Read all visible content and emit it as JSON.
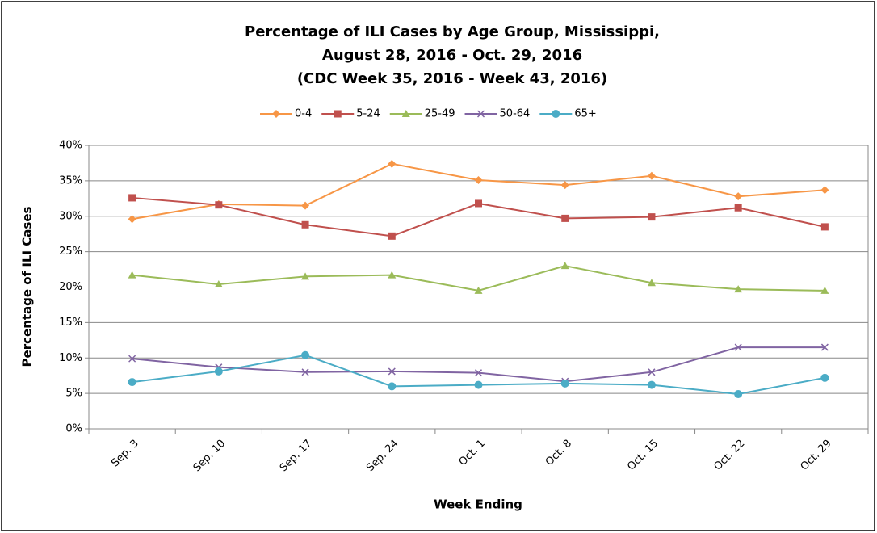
{
  "chart_data": {
    "type": "line",
    "title": [
      "Percentage of ILI Cases by Age Group, Mississippi,",
      "August 28, 2016 - Oct. 29, 2016",
      "(CDC Week 35, 2016 - Week 43, 2016)"
    ],
    "x_label": "Week Ending",
    "y_label": "Percentage of ILI Cases",
    "categories": [
      "Sep. 3",
      "Sep. 10",
      "Sep. 17",
      "Sep. 24",
      "Oct. 1",
      "Oct. 8",
      "Oct. 15",
      "Oct. 22",
      "Oct. 29"
    ],
    "series": [
      {
        "name": "0-4",
        "color": "#f79646",
        "marker": "diamond",
        "values": [
          29.6,
          31.7,
          31.5,
          37.4,
          35.1,
          34.4,
          35.7,
          32.8,
          33.7
        ]
      },
      {
        "name": "5-24",
        "color": "#c0504d",
        "marker": "square",
        "values": [
          32.6,
          31.6,
          28.8,
          27.2,
          31.8,
          29.7,
          29.9,
          31.2,
          28.5
        ]
      },
      {
        "name": "25-49",
        "color": "#9bbb59",
        "marker": "triangle",
        "values": [
          21.7,
          20.4,
          21.5,
          21.7,
          19.5,
          23.0,
          20.6,
          19.7,
          19.5
        ]
      },
      {
        "name": "50-64",
        "color": "#8064a2",
        "marker": "x",
        "values": [
          9.9,
          8.7,
          8.0,
          8.1,
          7.9,
          6.7,
          8.0,
          11.5,
          11.5
        ]
      },
      {
        "name": "65+",
        "color": "#4bacc6",
        "marker": "circle",
        "values": [
          6.6,
          8.1,
          10.4,
          6.0,
          6.2,
          6.4,
          6.2,
          4.9,
          7.2
        ]
      }
    ],
    "ylim": [
      0,
      40
    ],
    "yticks": [
      {
        "value": 0,
        "label": "0%"
      },
      {
        "value": 5,
        "label": "5%"
      },
      {
        "value": 10,
        "label": "10%"
      },
      {
        "value": 15,
        "label": "15%"
      },
      {
        "value": 20,
        "label": "20%"
      },
      {
        "value": 25,
        "label": "25%"
      },
      {
        "value": 30,
        "label": "30%"
      },
      {
        "value": 35,
        "label": "35%"
      },
      {
        "value": 40,
        "label": "40%"
      }
    ],
    "grid": true,
    "legend": "top"
  }
}
